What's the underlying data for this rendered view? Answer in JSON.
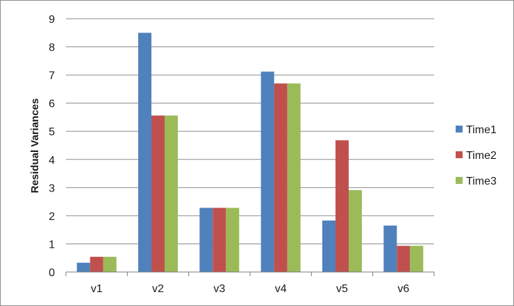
{
  "chart_data": {
    "type": "bar",
    "title": "",
    "xlabel": "",
    "ylabel": "Residual Variances",
    "ylim": [
      0,
      9
    ],
    "yticks": [
      "0",
      "1",
      "2",
      "3",
      "4",
      "5",
      "6",
      "7",
      "8",
      "9"
    ],
    "grid": true,
    "legend_position": "right",
    "categories": [
      "v1",
      "v2",
      "v3",
      "v4",
      "v5",
      "v6"
    ],
    "series": [
      {
        "name": "Time1",
        "color": "#4F81BD",
        "values": [
          0.33,
          8.5,
          2.28,
          7.12,
          1.83,
          1.65
        ]
      },
      {
        "name": "Time2",
        "color": "#C0504D",
        "values": [
          0.54,
          5.56,
          2.28,
          6.7,
          4.68,
          0.93
        ]
      },
      {
        "name": "Time3",
        "color": "#9BBB59",
        "values": [
          0.54,
          5.56,
          2.28,
          6.7,
          2.91,
          0.93
        ]
      }
    ]
  }
}
